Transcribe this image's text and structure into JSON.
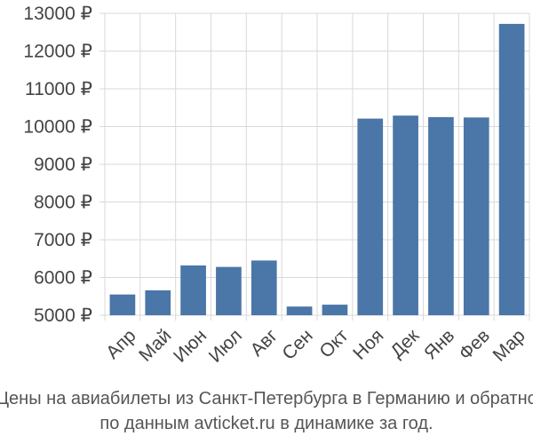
{
  "chart_data": {
    "type": "bar",
    "categories": [
      "Апр",
      "Май",
      "Июн",
      "Июл",
      "Авг",
      "Сен",
      "Окт",
      "Ноя",
      "Дек",
      "Янв",
      "Фев",
      "Мар"
    ],
    "values": [
      5550,
      5660,
      6320,
      6280,
      6450,
      5230,
      5280,
      10210,
      10290,
      10250,
      10240,
      12720
    ],
    "ylim": [
      5000,
      13000
    ],
    "yticks": [
      5000,
      6000,
      7000,
      8000,
      9000,
      10000,
      11000,
      12000,
      13000
    ],
    "y_tick_labels": [
      "5000 ₽",
      "6000 ₽",
      "7000 ₽",
      "8000 ₽",
      "9000 ₽",
      "10000 ₽",
      "11000 ₽",
      "12000 ₽",
      "13000 ₽"
    ],
    "bar_color": "#4a76a8",
    "grid": true,
    "caption_line1": "Цены на авиабилеты из Санкт-Петербурга в Германию и обратно",
    "caption_line2": "по данным avticket.ru в динамике за год."
  }
}
